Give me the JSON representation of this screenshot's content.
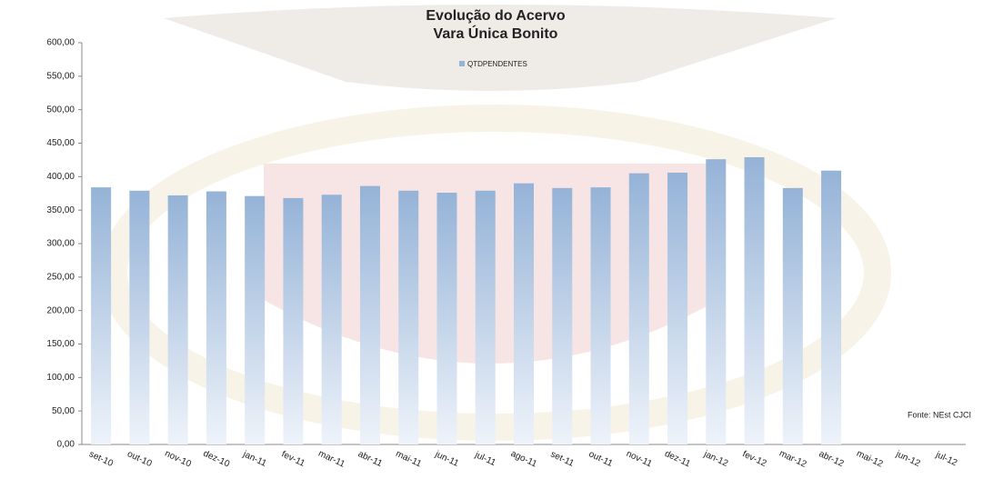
{
  "chart_data": {
    "type": "bar",
    "title": "Evolução do Acervo",
    "subtitle": "Vara Única Bonito",
    "annotation": "Fonte: NEst CJCI",
    "categories": [
      "set-10",
      "out-10",
      "nov-10",
      "dez-10",
      "jan-11",
      "fev-11",
      "mar-11",
      "abr-11",
      "mai-11",
      "jun-11",
      "jul-11",
      "ago-11",
      "set-11",
      "out-11",
      "nov-11",
      "dez-11",
      "jan-12",
      "fev-12",
      "mar-12",
      "abr-12",
      "mai-12",
      "jun-12",
      "jul-12"
    ],
    "series": [
      {
        "name": "QTDPENDENTES",
        "color": "#95b3d7",
        "values": [
          384,
          379,
          372,
          378,
          371,
          368,
          373,
          386,
          379,
          376,
          379,
          390,
          383,
          384,
          405,
          406,
          426,
          429,
          383,
          409,
          null,
          null,
          null
        ]
      }
    ],
    "ylim": [
      0,
      600
    ],
    "yticks": [
      {
        "value": 0,
        "label": "0,00"
      },
      {
        "value": 50,
        "label": "50,00"
      },
      {
        "value": 100,
        "label": "100,00"
      },
      {
        "value": 150,
        "label": "150,00"
      },
      {
        "value": 200,
        "label": "200,00"
      },
      {
        "value": 250,
        "label": "250,00"
      },
      {
        "value": 300,
        "label": "300,00"
      },
      {
        "value": 350,
        "label": "350,00"
      },
      {
        "value": 400,
        "label": "400,00"
      },
      {
        "value": 450,
        "label": "450,00"
      },
      {
        "value": 500,
        "label": "500,00"
      },
      {
        "value": 550,
        "label": "550,00"
      },
      {
        "value": 600,
        "label": "600,00"
      }
    ],
    "legend": "top",
    "grid": false
  }
}
